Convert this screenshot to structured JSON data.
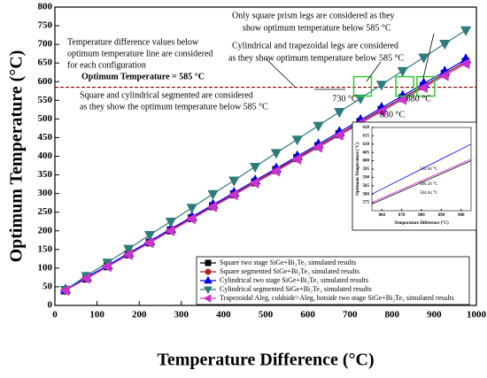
{
  "chart_data": [
    {
      "type": "line",
      "x_label": "Temperature Difference (°C)",
      "y_label": "Optimum Temperature (°C)",
      "x": [
        25,
        75,
        125,
        175,
        225,
        275,
        325,
        375,
        425,
        475,
        525,
        575,
        625,
        675,
        725,
        775,
        825,
        875,
        925,
        975
      ],
      "series": [
        {
          "name": "Square two stage SiGe+Bi₂Te₃ simulated results",
          "color": "#000000",
          "marker": "square",
          "values": [
            40,
            72,
            105,
            137,
            169,
            201,
            234,
            266,
            298,
            330,
            363,
            395,
            427,
            459,
            492,
            524,
            556,
            588,
            621,
            653
          ]
        },
        {
          "name": "Square segmented SiGe+Bi₂Te₃ simulated results",
          "color": "#b22222",
          "marker": "circle",
          "values": [
            41,
            73,
            106,
            138,
            170,
            202,
            235,
            267,
            299,
            331,
            364,
            396,
            428,
            460,
            493,
            525,
            557,
            589,
            622,
            654
          ]
        },
        {
          "name": "Cylindrical two stage SiGe+Bi₂Te₃ simulated results",
          "color": "#0000ee",
          "marker": "triangle-up",
          "values": [
            42,
            75,
            107,
            140,
            172,
            205,
            237,
            270,
            302,
            335,
            367,
            400,
            432,
            465,
            497,
            530,
            562,
            595,
            627,
            660
          ]
        },
        {
          "name": "Cylindrical segmented SiGe+Bi₂Te₃ simulated results",
          "color": "#2e7b7b",
          "marker": "triangle-down",
          "values": [
            42,
            79,
            115,
            152,
            189,
            225,
            262,
            299,
            335,
            372,
            409,
            445,
            482,
            519,
            555,
            592,
            629,
            665,
            702,
            738
          ]
        },
        {
          "name": "Trapezoidal Aleg, coldside>Aleg, hotside two stage SiGe+Bi₂Te₃ simulated results",
          "color": "#cc33cc",
          "marker": "triangle-left",
          "values": [
            40,
            72,
            104,
            136,
            168,
            200,
            232,
            264,
            296,
            328,
            360,
            392,
            424,
            456,
            488,
            520,
            552,
            584,
            616,
            648
          ]
        }
      ],
      "xlim": [
        0,
        1000
      ],
      "xticks": [
        0,
        100,
        200,
        300,
        400,
        500,
        600,
        700,
        800,
        900,
        1000
      ],
      "ylim": [
        0,
        800
      ],
      "yticks": [
        0,
        50,
        100,
        150,
        200,
        250,
        300,
        350,
        400,
        450,
        500,
        550,
        600,
        650,
        700,
        750,
        800
      ],
      "reference_line": {
        "value": 585,
        "color": "#8b0000"
      },
      "highlights": [
        {
          "value": 730,
          "label": "730 °C"
        },
        {
          "value": 830,
          "label": "830 °C"
        },
        {
          "value": 880,
          "label": "880 °C"
        }
      ],
      "legend": "lower right",
      "annotations": [
        "Only square prism legs are considered as they",
        "show optimum temperature below 585 °C",
        "Cylindrical and trapezoidal legs are considered",
        "as they show optimum temperature below 585 °C",
        "Temperature difference values below",
        "optimum temperature line are considered",
        "for each configuration",
        "Optimum Temperature = 585 °C",
        "Square and cylindrical segmented are considered",
        "as they show the optimum temperature below 585 °C"
      ]
    },
    {
      "type": "line",
      "x_label": "Temperature Difference (°C)",
      "y_label": "Optimum Temperature (°C)",
      "x": [
        855,
        905
      ],
      "series": [
        {
          "color": "#0000ee",
          "values": [
            580,
            610
          ]
        },
        {
          "color": "#cc33cc",
          "values": [
            575,
            601
          ]
        },
        {
          "color": "#000000",
          "values": [
            574,
            600
          ]
        }
      ],
      "xlim": [
        855,
        905
      ],
      "xticks": [
        860,
        870,
        880,
        890,
        900
      ],
      "ylim": [
        570,
        620
      ],
      "yticks": [
        575,
        580,
        585,
        590,
        595,
        600,
        605,
        610,
        615,
        620
      ],
      "annotations": [
        "584.64 °C",
        "586.30 °C",
        "584.64 °C"
      ]
    }
  ]
}
